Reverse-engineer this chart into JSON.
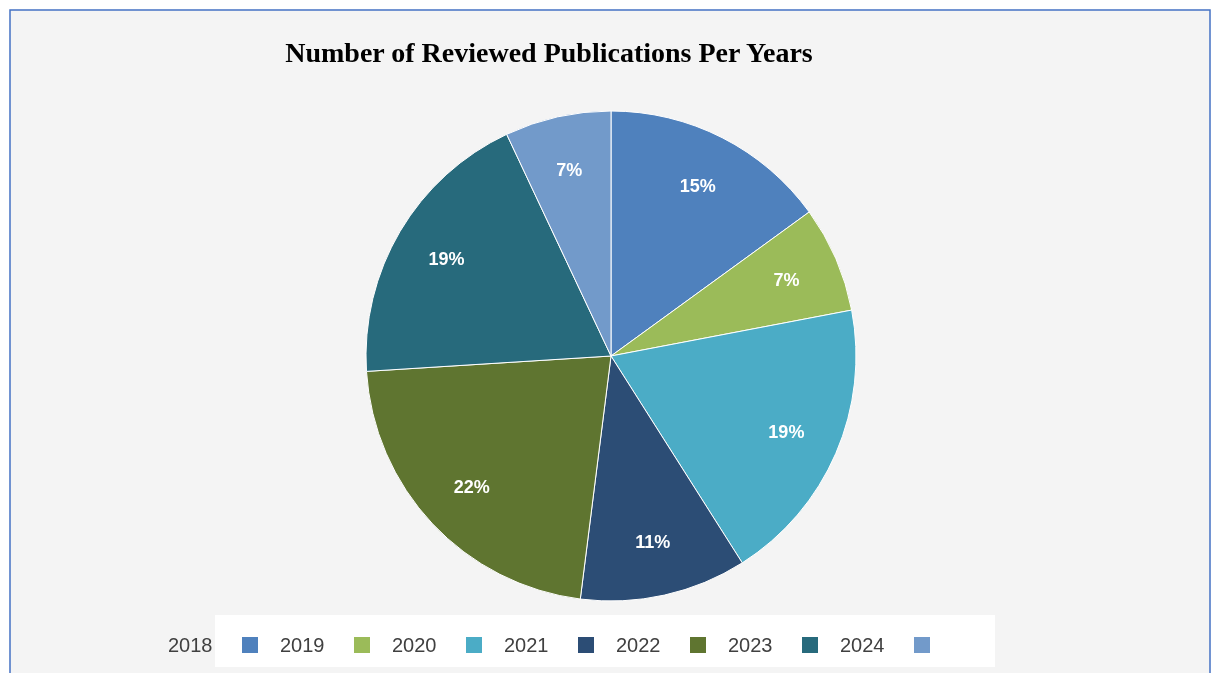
{
  "chart_data": {
    "type": "pie",
    "title": "Number of Reviewed Publications Per Years",
    "categories": [
      "2018",
      "2019",
      "2020",
      "2021",
      "2022",
      "2023",
      "2024"
    ],
    "values": [
      15,
      7,
      19,
      11,
      22,
      19,
      7
    ],
    "colors": [
      "#4f81bd",
      "#9bbb59",
      "#4bacc6",
      "#2c4d75",
      "#5f7530",
      "#276a7c",
      "#729aca"
    ],
    "value_labels": [
      "15%",
      "7%",
      "19%",
      "11%",
      "22%",
      "19%",
      "7%"
    ],
    "legend": "bottom"
  }
}
